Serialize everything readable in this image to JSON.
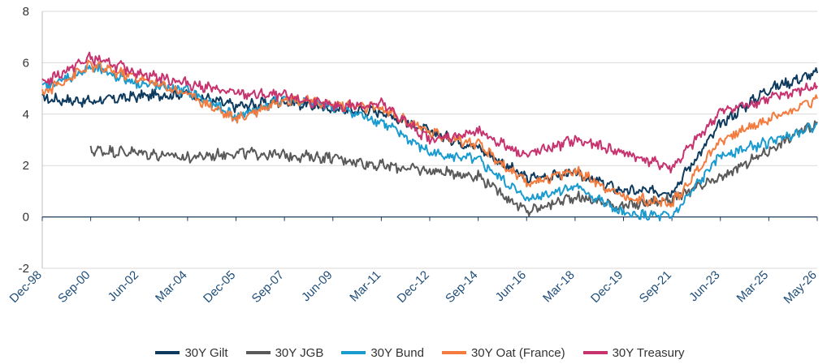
{
  "chart_data": {
    "type": "line",
    "title": "",
    "xlabel": "",
    "ylabel": "",
    "ylim": [
      -2,
      8
    ],
    "yticks": [
      "-2",
      "0",
      "2",
      "4",
      "6",
      "8"
    ],
    "x": [
      "Dec-98",
      "Sep-00",
      "Jun-02",
      "Mar-04",
      "Dec-05",
      "Sep-07",
      "Jun-09",
      "Mar-11",
      "Dec-12",
      "Sep-14",
      "Jun-16",
      "Mar-18",
      "Dec-19",
      "Sep-21",
      "Jun-23",
      "Mar-25",
      "May-26"
    ],
    "grid": true,
    "legend_position": "bottom",
    "series": [
      {
        "name": "30Y Gilt",
        "color": "#0e3a5e",
        "values": [
          4.6,
          4.5,
          4.7,
          4.8,
          4.3,
          4.5,
          4.2,
          4.1,
          3.3,
          2.7,
          1.5,
          1.7,
          1.0,
          1.0,
          3.6,
          5.0,
          5.6
        ]
      },
      {
        "name": "30Y JGB",
        "color": "#595959",
        "values": [
          null,
          2.6,
          2.5,
          2.3,
          2.5,
          2.4,
          2.3,
          2.0,
          1.8,
          1.6,
          0.2,
          0.8,
          0.4,
          0.7,
          1.5,
          2.6,
          3.7
        ]
      },
      {
        "name": "30Y Bund",
        "color": "#1a9bcf",
        "values": [
          5.0,
          5.8,
          5.2,
          4.9,
          3.9,
          4.6,
          4.3,
          3.7,
          2.5,
          2.2,
          0.7,
          1.2,
          0.1,
          0.0,
          2.4,
          2.9,
          3.6
        ]
      },
      {
        "name": "30Y Oat (France)",
        "color": "#f47b3e",
        "values": [
          4.8,
          5.9,
          5.4,
          4.8,
          3.8,
          4.6,
          4.4,
          4.2,
          3.3,
          2.8,
          1.3,
          1.8,
          0.8,
          0.5,
          3.0,
          3.8,
          4.6
        ]
      },
      {
        "name": "30Y Treasury",
        "color": "#c7336f",
        "values": [
          5.2,
          6.2,
          5.6,
          5.2,
          4.8,
          4.7,
          4.3,
          4.4,
          3.0,
          3.3,
          2.4,
          3.0,
          2.5,
          1.9,
          4.1,
          4.6,
          5.1
        ]
      }
    ]
  }
}
